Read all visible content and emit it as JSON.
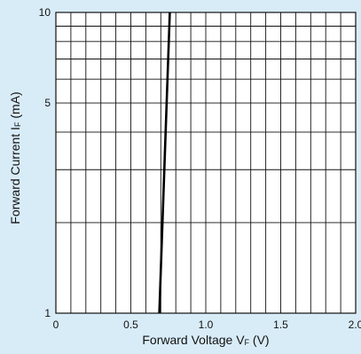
{
  "colors": {
    "background": "#d8ecf8",
    "plot_area": "#ffffff",
    "grid": "#111111",
    "curve": "#000000"
  },
  "chart_data": {
    "type": "line",
    "title": "",
    "xlabel": "Forward Voltage  VF (V)",
    "ylabel": "Forward Current  IF (mA)",
    "xlabel_parts": {
      "prefix": "Forward Voltage  V",
      "subscript": "F",
      "suffix": " (V)"
    },
    "ylabel_parts": {
      "prefix": "Forward Current  I",
      "subscript": "F",
      "suffix": " (mA)"
    },
    "xlim": [
      0,
      2.0
    ],
    "ylim": [
      1,
      10
    ],
    "y_scale": "log",
    "grid": true,
    "x_minor_step": 0.1,
    "x_ticks": [
      {
        "value": 0,
        "label": "0"
      },
      {
        "value": 0.5,
        "label": "0.5"
      },
      {
        "value": 1.0,
        "label": "1.0"
      },
      {
        "value": 1.5,
        "label": "1.5"
      },
      {
        "value": 2.0,
        "label": "2.0"
      }
    ],
    "y_ticks": [
      {
        "value": 1,
        "label": "1"
      },
      {
        "value": 5,
        "label": "5"
      },
      {
        "value": 10,
        "label": "10"
      }
    ],
    "y_gridlines": [
      1,
      2,
      3,
      4,
      5,
      6,
      7,
      8,
      9,
      10
    ],
    "series": [
      {
        "x": [
          0.69,
          0.76
        ],
        "y": [
          1,
          10
        ]
      }
    ]
  }
}
